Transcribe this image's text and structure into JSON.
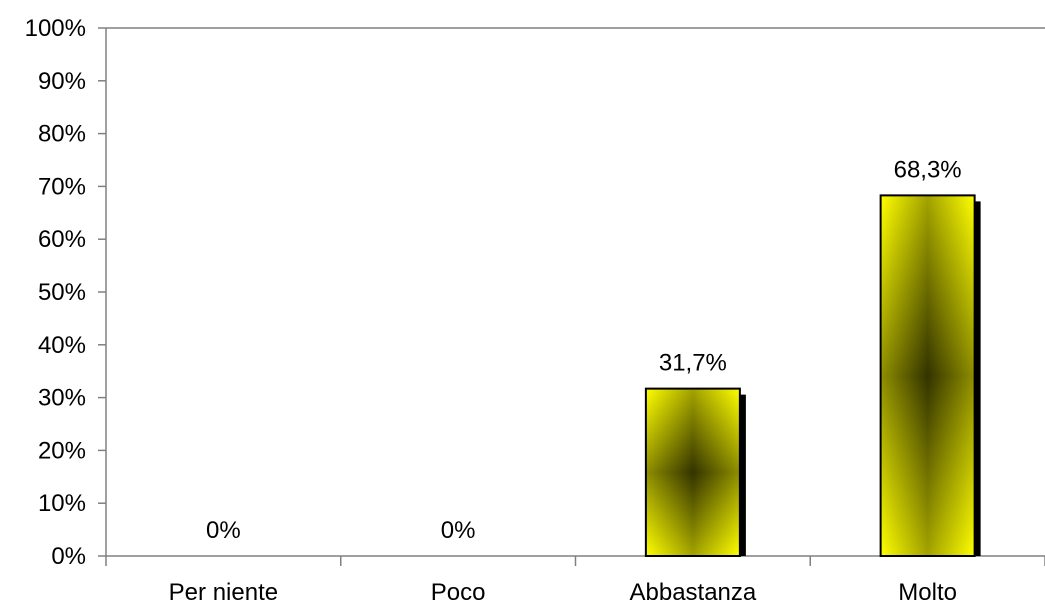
{
  "chart_data": {
    "type": "bar",
    "categories": [
      "Per niente",
      "Poco",
      "Abbastanza",
      "Molto"
    ],
    "values": [
      0,
      0,
      31.7,
      68.3
    ],
    "data_labels": [
      "0%",
      "0%",
      "31,7%",
      "68,3%"
    ],
    "ylim": [
      0,
      100
    ],
    "yticks": [
      0,
      10,
      20,
      30,
      40,
      50,
      60,
      70,
      80,
      90,
      100
    ],
    "ytick_labels": [
      "0%",
      "10%",
      "20%",
      "30%",
      "40%",
      "50%",
      "60%",
      "70%",
      "80%",
      "90%",
      "100%"
    ],
    "title": "",
    "xlabel": "",
    "ylabel": "",
    "grid": false,
    "legend": "none",
    "colors": {
      "bar_edge": "#FFFF00",
      "bar_center": "#333300",
      "bar_outline": "#000000",
      "bar_shadow": "#000000",
      "axis": "#808080"
    }
  }
}
